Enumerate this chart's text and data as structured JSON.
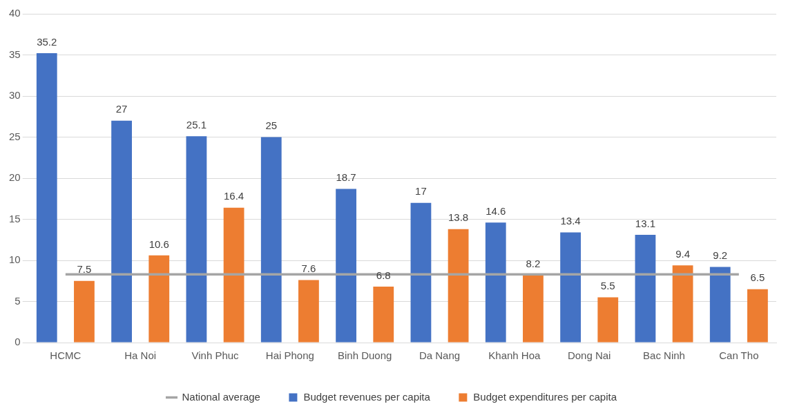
{
  "chart_data": {
    "type": "bar",
    "categories": [
      "HCMC",
      "Ha Noi",
      "Vinh Phuc",
      "Hai Phong",
      "Binh Duong",
      "Da Nang",
      "Khanh Hoa",
      "Dong Nai",
      "Bac Ninh",
      "Can Tho"
    ],
    "series": [
      {
        "name": "Budget revenues per capita",
        "color": "#4472c4",
        "values": [
          35.2,
          27,
          25.1,
          25,
          18.7,
          17,
          14.6,
          13.4,
          13.1,
          9.2
        ],
        "value_labels": [
          "35.2",
          "27",
          "25.1",
          "25",
          "18.7",
          "17",
          "14.6",
          "13.4",
          "13.1",
          "9.2"
        ]
      },
      {
        "name": "Budget expenditures per capita",
        "color": "#ed7d31",
        "values": [
          7.5,
          10.6,
          16.4,
          7.6,
          6.8,
          13.8,
          8.2,
          5.5,
          9.4,
          6.5
        ],
        "value_labels": [
          "7.5",
          "10.6",
          "16.4",
          "7.6",
          "6.8",
          "13.8",
          "8.2",
          "5.5",
          "9.4",
          "6.5"
        ]
      },
      {
        "name": "National average",
        "type": "line",
        "color": "#a5a5a5",
        "values": [
          8.3,
          8.3,
          8.3,
          8.3,
          8.3,
          8.3,
          8.3,
          8.3,
          8.3,
          8.3
        ]
      }
    ],
    "ylim": [
      0,
      40
    ],
    "yticks": [
      0,
      5,
      10,
      15,
      20,
      25,
      30,
      35,
      40
    ],
    "grid": "y",
    "legend": "bottom",
    "marker": "none",
    "line_style": "solid"
  }
}
